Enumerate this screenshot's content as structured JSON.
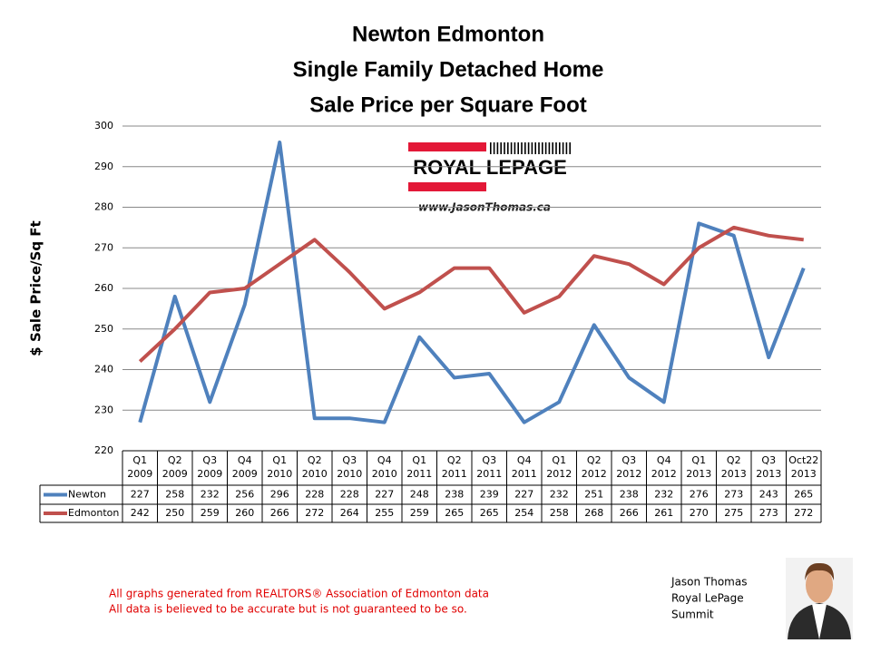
{
  "chart_data": {
    "type": "line",
    "title": [
      "Newton Edmonton",
      "Single Family Detached Home",
      "Sale Price per Square Foot"
    ],
    "y_label": "$ Sale Price/Sq Ft",
    "categories": [
      "Q1 2009",
      "Q2 2009",
      "Q3 2009",
      "Q4 2009",
      "Q1 2010",
      "Q2 2010",
      "Q3 2010",
      "Q4 2010",
      "Q1 2011",
      "Q2 2011",
      "Q3 2011",
      "Q4 2011",
      "Q1 2012",
      "Q2 2012",
      "Q3 2012",
      "Q4 2012",
      "Q1 2013",
      "Q2 2013",
      "Q3 2013",
      "Oct22 2013"
    ],
    "series": [
      {
        "name": "Newton",
        "color": "#4f81bd",
        "values": [
          227,
          258,
          232,
          256,
          296,
          228,
          228,
          227,
          248,
          238,
          239,
          227,
          232,
          251,
          238,
          232,
          276,
          273,
          243,
          265
        ]
      },
      {
        "name": "Edmonton",
        "color": "#c0504d",
        "values": [
          242,
          250,
          259,
          260,
          266,
          272,
          264,
          255,
          259,
          265,
          265,
          254,
          258,
          268,
          266,
          261,
          270,
          275,
          273,
          272
        ]
      }
    ],
    "ylim": [
      220,
      300
    ],
    "yticks": [
      220,
      230,
      240,
      250,
      260,
      270,
      280,
      290,
      300
    ],
    "grid": true
  },
  "logo": {
    "brand": "ROYAL LEPAGE",
    "url": "www.JasonThomas.ca"
  },
  "footer": [
    "All graphs generated from REALTORS® Association of Edmonton data",
    "All data is believed to be accurate but is not guaranteed to be so."
  ],
  "signature": [
    "Jason Thomas",
    "Royal LePage",
    "Summit"
  ]
}
